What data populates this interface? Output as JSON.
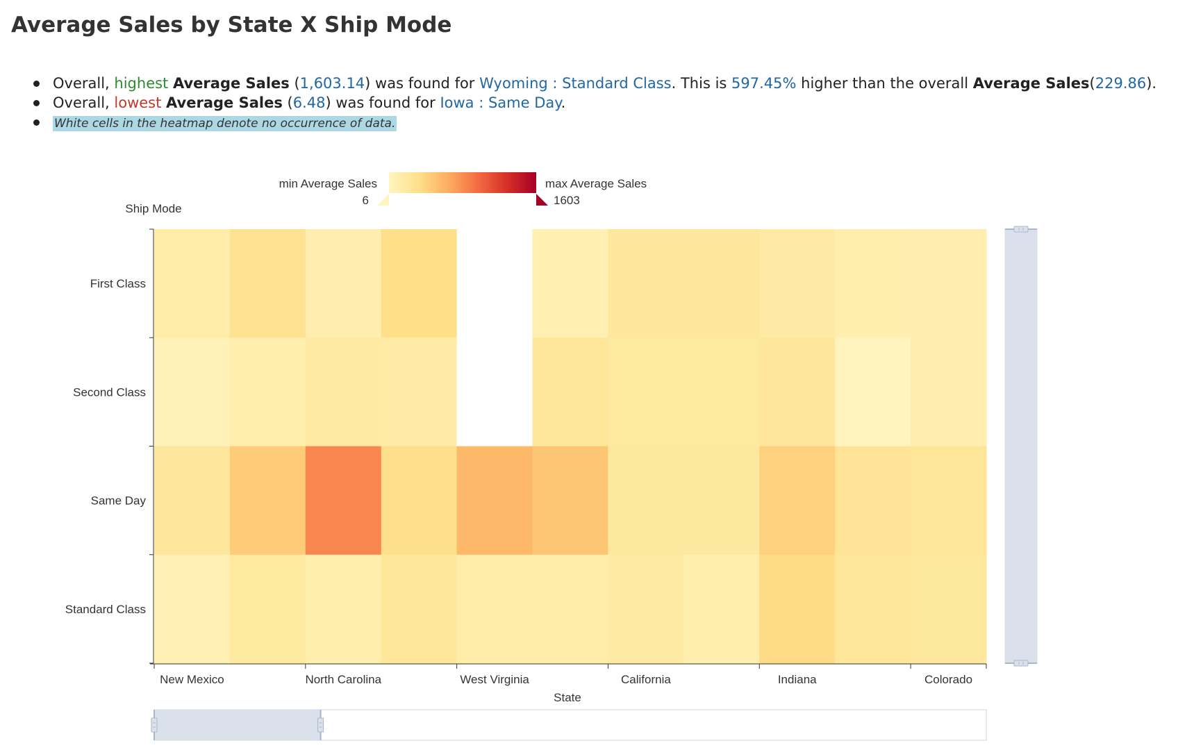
{
  "title": "Average Sales by State X Ship Mode",
  "insights": {
    "line1": {
      "prefix": "Overall, ",
      "highlight": "highest",
      "metric": "Average Sales",
      "open": " (",
      "value": "1,603.14",
      "mid": ") was found for ",
      "entity": "Wyoming : Standard Class",
      "mid2": ". This is ",
      "pct": "597.45%",
      "mid3": " higher than the overall ",
      "metric2": "Average Sales",
      "open2": "(",
      "overall": "229.86",
      "close": ")."
    },
    "line2": {
      "prefix": "Overall, ",
      "highlight": "lowest",
      "metric": "Average Sales",
      "open": " (",
      "value": "6.48",
      "mid": ") was found for ",
      "entity": "Iowa : Same Day",
      "close": "."
    },
    "note": "White cells in the heatmap denote no occurrence of data."
  },
  "colors": {
    "text": "#333333",
    "green": "#2e8b2e",
    "red": "#c0392b",
    "blue": "#2167a8",
    "note_bg": "#acd8e6",
    "scrollbar": "#dbe1ea",
    "scroll_handle": "#a8b6ca",
    "scale": [
      "#fff5c0",
      "#fee08b",
      "#fdae61",
      "#f46d43",
      "#d73027",
      "#a50026"
    ]
  },
  "legend": {
    "min_label": "min Average Sales",
    "min_value": "6",
    "max_label": "max Average Sales",
    "max_value": "1603"
  },
  "chart_data": {
    "type": "heatmap",
    "xlabel": "State",
    "ylabel": "Ship Mode",
    "x_visible_tick_labels": [
      "New Mexico",
      "North Carolina",
      "West Virginia",
      "California",
      "Indiana",
      "Colorado"
    ],
    "y_categories": [
      "First Class",
      "Second Class",
      "Same Day",
      "Standard Class"
    ],
    "x_cell_count": 11,
    "value_range": [
      6,
      1603
    ],
    "cells": [
      [
        150,
        290,
        110,
        330,
        null,
        100,
        220,
        220,
        170,
        120,
        110
      ],
      [
        60,
        120,
        180,
        160,
        null,
        240,
        190,
        190,
        220,
        20,
        110
      ],
      [
        220,
        460,
        840,
        320,
        580,
        490,
        200,
        200,
        420,
        260,
        240
      ],
      [
        90,
        190,
        120,
        230,
        150,
        150,
        180,
        120,
        360,
        230,
        210
      ]
    ],
    "x_range_slider": [
      0,
      0.2
    ],
    "y_range_slider": [
      0,
      1
    ]
  }
}
